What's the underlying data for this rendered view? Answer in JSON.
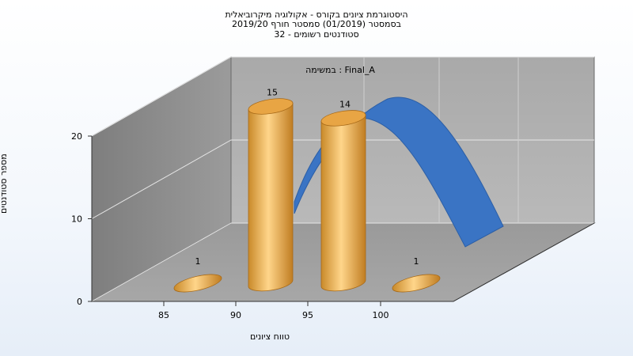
{
  "chart_data": {
    "type": "bar",
    "title_lines": [
      "היסטוגרמת ציונים בקורס - אקולוגיה מיקרוביאלית",
      "בסמסטר  (01/2019)  סמסטר חורף 2019/20",
      "סטודנטים רשומים - 32"
    ],
    "legend_text": "במשימה : Final_A",
    "xlabel": "טווח ציונים",
    "ylabel": "מספר סטודנטים",
    "x_ticks": [
      "85",
      "90",
      "95",
      "100"
    ],
    "y_ticks": [
      "0",
      "10",
      "20"
    ],
    "ylim": [
      0,
      20
    ],
    "series": [
      {
        "name": "Final_A",
        "categories": [
          "85",
          "90",
          "95",
          "100"
        ],
        "values": [
          1,
          15,
          14,
          1
        ]
      }
    ],
    "curve": {
      "type": "normal-fit",
      "color": "#3a74c4"
    },
    "bar_color": "#e8a544",
    "grid": true,
    "projection": "3d"
  }
}
